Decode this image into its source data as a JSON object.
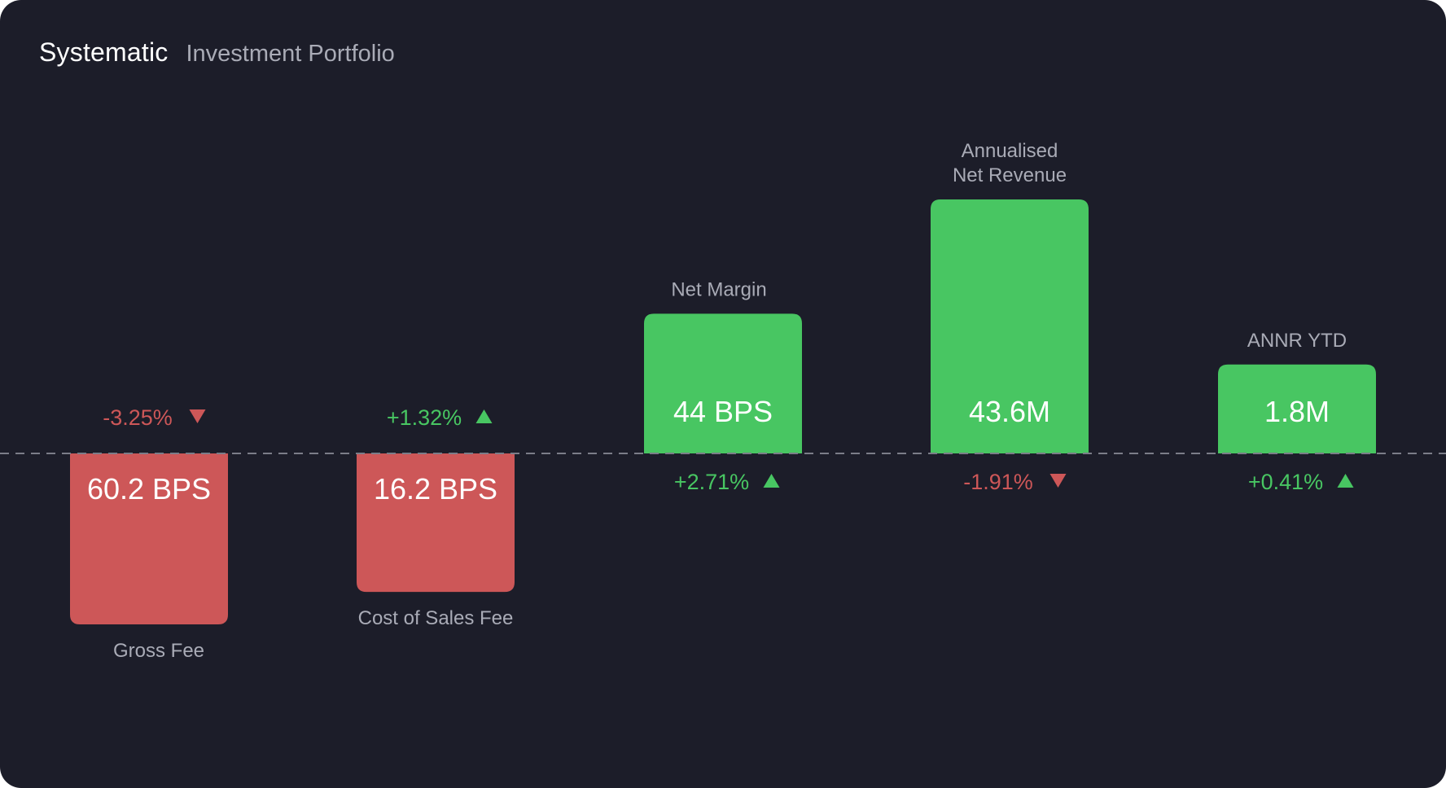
{
  "header": {
    "title": "Systematic",
    "subtitle": "Investment Portfolio"
  },
  "colors": {
    "background": "#1c1d29",
    "positive": "#48c662",
    "negative": "#cd5758",
    "label": "#a9abb6",
    "baseline": "#7b7d88"
  },
  "chart_data": {
    "type": "bar",
    "baseline": "dashed-center",
    "categories": [
      "Gross Fee",
      "Cost of Sales Fee",
      "Net Margin",
      "Annualised Net Revenue",
      "ANNR YTD"
    ],
    "bars": [
      {
        "label_lines": [
          "Gross Fee"
        ],
        "value_label": "60.2 BPS",
        "direction": "down",
        "relative_height": 1.0,
        "change": "-3.25%",
        "trend": "down"
      },
      {
        "label_lines": [
          "Cost of Sales Fee"
        ],
        "value_label": "16.2 BPS",
        "direction": "down",
        "relative_height": 0.81,
        "change": "+1.32%",
        "trend": "up"
      },
      {
        "label_lines": [
          "Net Margin"
        ],
        "value_label": "44 BPS",
        "direction": "up",
        "relative_height": 0.55,
        "change": "+2.71%",
        "trend": "up"
      },
      {
        "label_lines": [
          "Annualised",
          "Net Revenue"
        ],
        "value_label": "43.6M",
        "direction": "up",
        "relative_height": 1.0,
        "change": "-1.91%",
        "trend": "down"
      },
      {
        "label_lines": [
          "ANNR YTD"
        ],
        "value_label": "1.8M",
        "direction": "up",
        "relative_height": 0.35,
        "change": "+0.41%",
        "trend": "up"
      }
    ]
  }
}
